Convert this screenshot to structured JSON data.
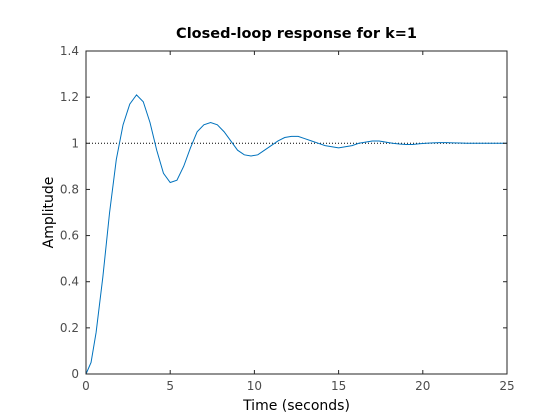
{
  "chart_data": {
    "type": "line",
    "title": "Closed-loop response for k=1",
    "xlabel": "Time (seconds)",
    "ylabel": "Amplitude",
    "xlim": [
      0,
      25
    ],
    "ylim": [
      0,
      1.4
    ],
    "xticks": [
      0,
      5,
      10,
      15,
      20,
      25
    ],
    "yticks": [
      0,
      0.2,
      0.4,
      0.6,
      0.8,
      1,
      1.2,
      1.4
    ],
    "xtick_labels": [
      "0",
      "5",
      "10",
      "15",
      "20",
      "25"
    ],
    "ytick_labels": [
      "0",
      "0.2",
      "0.4",
      "0.6",
      "0.8",
      "1",
      "1.2",
      "1.4"
    ],
    "grid": false,
    "reference_line": {
      "y": 1,
      "style": "dotted",
      "color": "#000000"
    },
    "series": [
      {
        "color": "#0072bd",
        "x": [
          0,
          0.3,
          0.6,
          1.0,
          1.4,
          1.8,
          2.2,
          2.6,
          3.0,
          3.4,
          3.8,
          4.2,
          4.6,
          5.0,
          5.4,
          5.8,
          6.2,
          6.6,
          7.0,
          7.4,
          7.8,
          8.2,
          8.6,
          9.0,
          9.4,
          9.8,
          10.2,
          10.6,
          11.0,
          11.4,
          11.8,
          12.2,
          12.6,
          13.0,
          13.4,
          13.8,
          14.2,
          14.6,
          15.0,
          15.4,
          15.8,
          16.2,
          16.6,
          17.0,
          17.4,
          17.8,
          18.2,
          18.6,
          19.0,
          19.4,
          19.8,
          20.2,
          20.6,
          21.0,
          21.4,
          21.8,
          22.2,
          22.6,
          23.0,
          23.5,
          24.0,
          24.5,
          25.0
        ],
        "y": [
          0,
          0.05,
          0.18,
          0.42,
          0.7,
          0.93,
          1.08,
          1.17,
          1.21,
          1.18,
          1.09,
          0.97,
          0.87,
          0.83,
          0.84,
          0.9,
          0.98,
          1.05,
          1.08,
          1.09,
          1.08,
          1.05,
          1.01,
          0.97,
          0.95,
          0.945,
          0.95,
          0.97,
          0.99,
          1.01,
          1.025,
          1.03,
          1.03,
          1.02,
          1.01,
          1.0,
          0.99,
          0.985,
          0.98,
          0.985,
          0.99,
          1.0,
          1.005,
          1.01,
          1.01,
          1.005,
          1.0,
          0.997,
          0.995,
          0.995,
          0.998,
          1.0,
          1.002,
          1.003,
          1.003,
          1.002,
          1.001,
          1.0,
          1.0,
          1.0,
          1.0,
          1.0,
          1.0
        ]
      }
    ]
  }
}
